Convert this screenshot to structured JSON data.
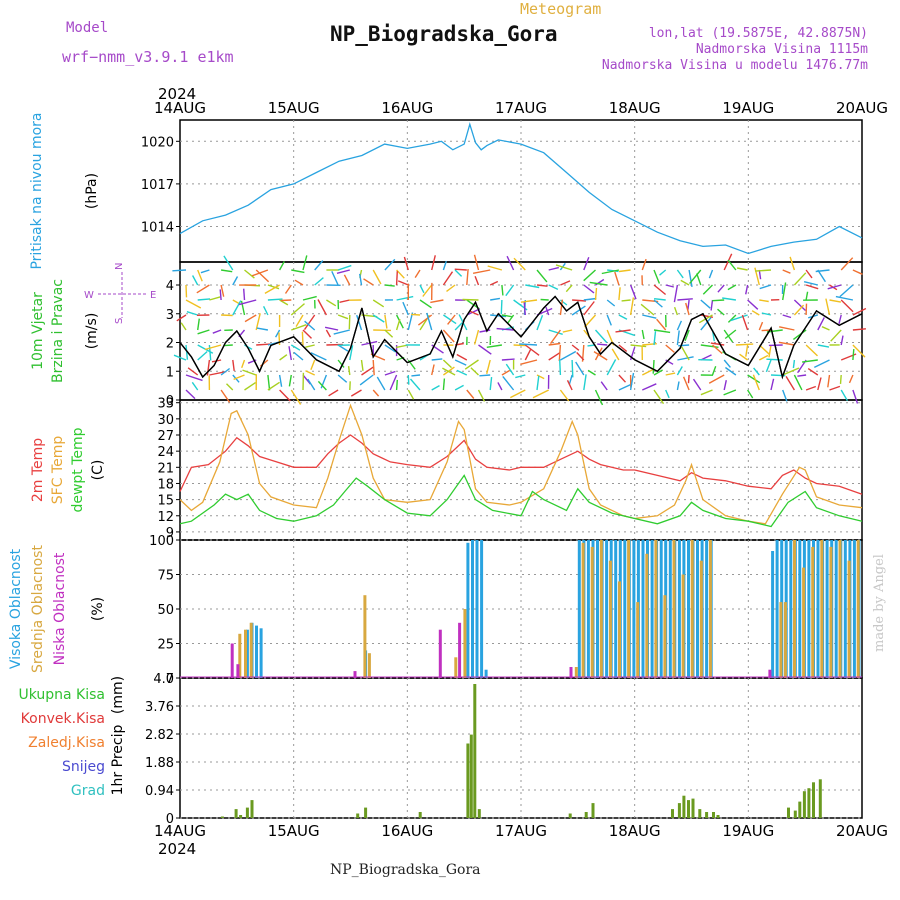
{
  "header": {
    "model_label": "Model",
    "model_name": "wrf−nmm_v3.9.1 e1km",
    "meteogram_label": "Meteogram",
    "station": "NP_Biogradska_Gora",
    "lonlat": "lon,lat (19.5875E, 42.8875N)",
    "altitude": "Nadmorska Visina 1115m",
    "model_altitude": "Nadmorska Visina u modelu 1476.77m",
    "footer": "NP_Biogradska_Gora",
    "credit": "made by Angel"
  },
  "chart_data": [
    {
      "type": "line",
      "panel": "pressure",
      "ylabel": "Pritisak na nivou mora",
      "unit": "(hPa)",
      "x_ticks": [
        "14AUG",
        "15AUG",
        "16AUG",
        "17AUG",
        "18AUG",
        "19AUG",
        "20AUG"
      ],
      "x_year": "2024",
      "ylim": [
        1011.5,
        1021.5
      ],
      "y_ticks": [
        1014,
        1017,
        1020
      ],
      "series": [
        {
          "color": "#29a3e0",
          "x": [
            0,
            0.2,
            0.4,
            0.6,
            0.8,
            1.0,
            1.2,
            1.4,
            1.6,
            1.8,
            2.0,
            2.2,
            2.3,
            2.4,
            2.5,
            2.55,
            2.6,
            2.65,
            2.7,
            2.8,
            3.0,
            3.2,
            3.4,
            3.6,
            3.8,
            4.0,
            4.2,
            4.4,
            4.6,
            4.8,
            5.0,
            5.2,
            5.4,
            5.6,
            5.8,
            6.0
          ],
          "values": [
            1013.5,
            1014.4,
            1014.8,
            1015.5,
            1016.6,
            1017.0,
            1017.8,
            1018.6,
            1019.0,
            1019.8,
            1019.5,
            1019.8,
            1020.0,
            1019.4,
            1019.8,
            1021.2,
            1019.9,
            1019.4,
            1019.7,
            1020.1,
            1019.8,
            1019.2,
            1017.8,
            1016.4,
            1015.2,
            1014.4,
            1013.6,
            1013.0,
            1012.6,
            1012.7,
            1012.1,
            1012.6,
            1012.9,
            1013.1,
            1014.0,
            1013.2
          ]
        }
      ]
    },
    {
      "type": "line",
      "panel": "wind",
      "ylabel": "10m Vjetar",
      "ylabel2": "Brzina i Pravac",
      "unit": "(m/s)",
      "compass": {
        "n": "N",
        "e": "E",
        "w": "W",
        "s": "S"
      },
      "ylim": [
        0,
        4.8
      ],
      "y_ticks": [
        0,
        1,
        2,
        3,
        4
      ],
      "series": [
        {
          "color": "#000000",
          "x": [
            0,
            0.1,
            0.2,
            0.3,
            0.4,
            0.5,
            0.6,
            0.7,
            0.8,
            1.0,
            1.2,
            1.4,
            1.5,
            1.6,
            1.7,
            1.8,
            2.0,
            2.2,
            2.3,
            2.4,
            2.5,
            2.6,
            2.7,
            2.8,
            3.0,
            3.1,
            3.2,
            3.3,
            3.4,
            3.5,
            3.6,
            3.7,
            3.8,
            4.0,
            4.2,
            4.4,
            4.5,
            4.6,
            4.8,
            5.0,
            5.2,
            5.3,
            5.4,
            5.6,
            5.8,
            6.0
          ],
          "values": [
            2.0,
            1.5,
            0.8,
            1.2,
            2.0,
            2.4,
            1.8,
            1.0,
            1.9,
            2.2,
            1.4,
            1.0,
            1.8,
            3.2,
            1.5,
            2.1,
            1.3,
            1.6,
            2.4,
            1.5,
            2.8,
            3.4,
            2.4,
            3.0,
            2.2,
            2.7,
            3.2,
            3.6,
            3.1,
            3.4,
            2.2,
            1.6,
            2.0,
            1.4,
            1.0,
            1.8,
            2.8,
            3.0,
            1.6,
            1.2,
            2.5,
            0.8,
            1.9,
            3.1,
            2.6,
            3.0
          ]
        }
      ]
    },
    {
      "type": "line",
      "panel": "temperature",
      "ylabel": "2m Temp",
      "ylabel2": "SFC Temp",
      "ylabel3": "dewpt Temp",
      "unit": "(C)",
      "ylim": [
        7.5,
        33.5
      ],
      "y_ticks": [
        9,
        12,
        15,
        18,
        21,
        24,
        27,
        30,
        33
      ],
      "series": [
        {
          "name": "2m Temp",
          "color": "#e84040",
          "x": [
            0,
            0.1,
            0.25,
            0.4,
            0.5,
            0.6,
            0.7,
            0.85,
            1.0,
            1.2,
            1.3,
            1.4,
            1.5,
            1.6,
            1.7,
            1.85,
            2.0,
            2.2,
            2.35,
            2.5,
            2.6,
            2.7,
            2.9,
            3.0,
            3.2,
            3.35,
            3.5,
            3.6,
            3.7,
            3.9,
            4.0,
            4.2,
            4.4,
            4.5,
            4.6,
            4.8,
            5.0,
            5.2,
            5.3,
            5.4,
            5.5,
            5.6,
            5.8,
            6.0
          ],
          "values": [
            16.5,
            21.0,
            21.5,
            24.0,
            26.5,
            25.0,
            23.0,
            22.0,
            21.0,
            21.0,
            23.5,
            25.5,
            27.0,
            25.5,
            23.5,
            22.0,
            21.5,
            21.0,
            23.0,
            26.0,
            22.5,
            21.0,
            20.5,
            21.0,
            21.0,
            22.5,
            24.0,
            22.5,
            21.5,
            20.5,
            20.5,
            19.5,
            18.5,
            20.0,
            19.0,
            18.5,
            17.5,
            17.0,
            19.5,
            20.5,
            19.0,
            18.0,
            17.5,
            16.0
          ]
        },
        {
          "name": "SFC Temp",
          "color": "#e8a838",
          "x": [
            0,
            0.1,
            0.2,
            0.35,
            0.45,
            0.5,
            0.6,
            0.7,
            0.8,
            1.0,
            1.2,
            1.3,
            1.4,
            1.5,
            1.6,
            1.7,
            1.8,
            2.0,
            2.2,
            2.35,
            2.45,
            2.5,
            2.6,
            2.7,
            2.9,
            3.0,
            3.2,
            3.35,
            3.45,
            3.5,
            3.6,
            3.7,
            3.9,
            4.0,
            4.2,
            4.35,
            4.45,
            4.5,
            4.6,
            4.8,
            5.0,
            5.15,
            5.3,
            5.45,
            5.5,
            5.6,
            5.8,
            6.0
          ],
          "values": [
            15.0,
            13.0,
            14.5,
            22.0,
            31.0,
            31.5,
            27.0,
            18.0,
            15.5,
            14.0,
            13.5,
            19.0,
            26.0,
            32.5,
            27.0,
            19.0,
            15.0,
            14.5,
            15.0,
            22.0,
            29.5,
            28.0,
            17.0,
            14.5,
            14.0,
            14.5,
            17.0,
            24.0,
            29.5,
            27.0,
            17.0,
            14.0,
            12.0,
            11.5,
            12.0,
            14.0,
            18.5,
            21.5,
            15.0,
            12.0,
            11.0,
            10.5,
            16.0,
            21.0,
            20.5,
            15.5,
            14.0,
            13.5
          ]
        },
        {
          "name": "dewpt Temp",
          "color": "#30cc30",
          "x": [
            0,
            0.1,
            0.2,
            0.3,
            0.4,
            0.5,
            0.6,
            0.7,
            0.85,
            1.0,
            1.2,
            1.35,
            1.45,
            1.55,
            1.65,
            1.8,
            2.0,
            2.2,
            2.35,
            2.5,
            2.6,
            2.75,
            3.0,
            3.1,
            3.2,
            3.4,
            3.5,
            3.6,
            3.8,
            4.0,
            4.2,
            4.4,
            4.5,
            4.6,
            4.8,
            5.0,
            5.2,
            5.35,
            5.5,
            5.6,
            5.8,
            6.0
          ],
          "values": [
            10.5,
            11.0,
            12.5,
            14.0,
            16.0,
            15.0,
            16.0,
            13.0,
            11.5,
            11.0,
            12.0,
            14.0,
            16.5,
            19.0,
            17.5,
            15.0,
            12.5,
            12.0,
            15.0,
            19.5,
            15.0,
            13.0,
            12.0,
            16.5,
            15.0,
            13.0,
            17.0,
            14.5,
            12.5,
            11.5,
            10.5,
            12.0,
            14.5,
            13.0,
            11.5,
            11.0,
            10.0,
            14.5,
            16.5,
            13.5,
            12.0,
            11.0
          ]
        }
      ]
    },
    {
      "type": "bar",
      "panel": "clouds",
      "ylabel": "Visoka Oblacnost",
      "ylabel2": "Srednja Oblacnost",
      "ylabel3": "Niska Oblacnost",
      "unit": "(%)",
      "ylim": [
        0,
        100
      ],
      "y_ticks": [
        0,
        25,
        50,
        75,
        100
      ],
      "series": [
        {
          "name": "Visoka Oblacnost",
          "color": "#29a3e0",
          "x": [
            0.58,
            0.62,
            0.66,
            0.7,
            1.62,
            2.52,
            2.56,
            2.6,
            2.64,
            2.68,
            3.5,
            3.54,
            3.58,
            3.62,
            3.66,
            3.7,
            3.74,
            3.78,
            3.82,
            3.86,
            3.9,
            3.94,
            3.98,
            4.02,
            4.06,
            4.1,
            4.14,
            4.18,
            4.22,
            4.26,
            4.3,
            4.34,
            4.38,
            4.42,
            4.46,
            4.5,
            4.54,
            4.58,
            4.62,
            4.66,
            5.2,
            5.24,
            5.28,
            5.32,
            5.36,
            5.4,
            5.44,
            5.48,
            5.52,
            5.56,
            5.6,
            5.64,
            5.68,
            5.72,
            5.76,
            5.8,
            5.84,
            5.88,
            5.92,
            5.96
          ],
          "values": [
            35,
            40,
            38,
            36,
            20,
            98,
            100,
            100,
            100,
            6,
            100,
            100,
            100,
            100,
            100,
            100,
            100,
            100,
            100,
            100,
            100,
            100,
            100,
            100,
            100,
            100,
            100,
            100,
            100,
            100,
            100,
            100,
            100,
            100,
            100,
            100,
            100,
            100,
            100,
            100,
            92,
            100,
            100,
            100,
            100,
            100,
            100,
            100,
            100,
            100,
            100,
            100,
            100,
            100,
            100,
            100,
            100,
            100,
            100,
            100
          ]
        },
        {
          "name": "Srednja Oblacnost",
          "color": "#d8a840",
          "x": [
            0.5,
            0.55,
            0.6,
            1.6,
            1.64,
            2.4,
            2.48,
            3.46,
            3.52,
            3.6,
            3.68,
            3.76,
            3.84,
            3.92,
            4.0,
            4.08,
            4.16,
            4.24,
            4.32,
            4.4,
            4.48,
            4.56,
            4.64,
            5.26,
            5.3,
            5.38,
            5.46,
            5.54,
            5.62,
            5.7,
            5.78,
            5.86,
            5.94
          ],
          "values": [
            32,
            35,
            40,
            60,
            18,
            15,
            50,
            8,
            98,
            95,
            100,
            85,
            70,
            100,
            55,
            90,
            100,
            60,
            100,
            75,
            100,
            85,
            100,
            55,
            55,
            100,
            80,
            95,
            100,
            95,
            100,
            85,
            100
          ]
        },
        {
          "name": "Niska Oblacnost",
          "color": "#c030c0",
          "x": [
            0.42,
            0.47,
            1.5,
            2.25,
            2.42,
            3.4,
            5.15
          ],
          "values": [
            25,
            10,
            5,
            35,
            40,
            8,
            6
          ]
        }
      ]
    },
    {
      "type": "bar",
      "panel": "precipitation",
      "ylabel": "1hr Precip",
      "unit": "(mm)",
      "ylim": [
        0,
        4.7
      ],
      "y_ticks": [
        "4.7",
        "3.76",
        "2.82",
        "1.88",
        "0.94",
        "0"
      ],
      "legend": [
        "Ukupna Kisa",
        "Konvek.Kisa",
        "Zaledj.Kisa",
        "Snijeg",
        "Grad"
      ],
      "legend_colors": [
        "#30c030",
        "#e03a3a",
        "#f08030",
        "#4a4ad0",
        "#30c0c0"
      ],
      "series": [
        {
          "name": "Ukupna Kisa",
          "color": "#6a9a20",
          "x": [
            0.36,
            0.48,
            0.52,
            0.58,
            0.62,
            1.55,
            1.62,
            2.1,
            2.52,
            2.55,
            2.58,
            2.62,
            3.42,
            3.56,
            3.62,
            4.32,
            4.38,
            4.42,
            4.46,
            4.5,
            4.56,
            4.62,
            4.68,
            4.72,
            5.34,
            5.4,
            5.44,
            5.48,
            5.52,
            5.56,
            5.62
          ],
          "values": [
            0.05,
            0.3,
            0.1,
            0.35,
            0.6,
            0.15,
            0.35,
            0.2,
            2.5,
            2.8,
            4.5,
            0.3,
            0.15,
            0.2,
            0.5,
            0.3,
            0.5,
            0.75,
            0.6,
            0.65,
            0.3,
            0.2,
            0.2,
            0.1,
            0.35,
            0.25,
            0.55,
            0.9,
            1.0,
            1.2,
            1.3
          ]
        }
      ]
    }
  ]
}
